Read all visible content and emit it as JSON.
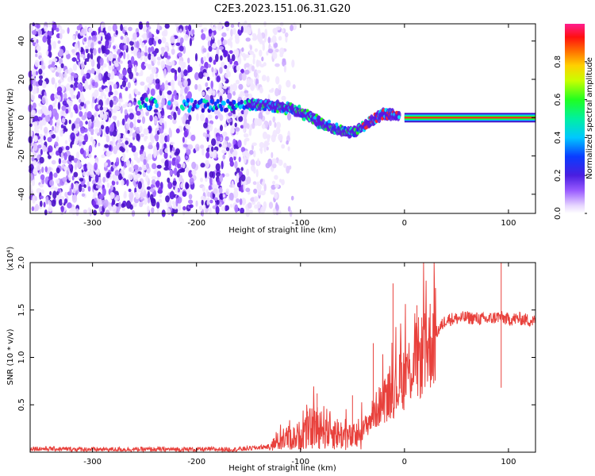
{
  "figure": {
    "title": "C2E3.2023.151.06.31.G20"
  },
  "chart_data": [
    {
      "type": "heatmap",
      "xlabel": "Height of straight line (km)",
      "ylabel": "Frequency (Hz)",
      "xlim": [
        -360,
        126
      ],
      "ylim": [
        -50,
        49
      ],
      "xticks": [
        -300,
        -200,
        -100,
        0,
        100
      ],
      "yticks": [
        -40,
        -20,
        0,
        20,
        40
      ],
      "grid": false,
      "colorbar": {
        "label": "Normalized spectral amplitude",
        "range": [
          0.0,
          1.0
        ],
        "ticks": [
          0.0,
          0.2,
          0.4,
          0.6,
          0.8
        ],
        "colormap": "rainbow (white-violet-blue-cyan-green-yellow-orange-red-magenta)"
      },
      "signal_ridge": {
        "description": "Doppler signal ridge frequency vs height",
        "x": [
          -250,
          -200,
          -150,
          -120,
          -100,
          -80,
          -60,
          -50,
          -40,
          -30,
          -20,
          0,
          50,
          126
        ],
        "y": [
          8,
          6,
          7,
          6,
          3,
          -3,
          -7,
          -8,
          -5,
          -1,
          2,
          1,
          0,
          0
        ]
      }
    },
    {
      "type": "line",
      "xlabel": "Height of straight line (km)",
      "ylabel": "SNR (10 * v/v)",
      "ylabel_multiplier": "(x10⁴)",
      "xlim": [
        -360,
        126
      ],
      "ylim": [
        0,
        20000
      ],
      "xticks": [
        -300,
        -200,
        -100,
        0,
        100
      ],
      "yticks": [
        5000,
        10000,
        15000,
        20000
      ],
      "ytick_labels": [
        "0.5",
        "1.0",
        "1.5",
        "2.0"
      ],
      "grid": false,
      "series": [
        {
          "color": "#e8413c",
          "x": [
            -360,
            -340,
            -300,
            -250,
            -200,
            -160,
            -130,
            -115,
            -105,
            -90,
            -80,
            -70,
            -60,
            -50,
            -40,
            -30,
            -20,
            -10,
            0,
            10,
            20,
            30,
            40,
            60,
            80,
            90,
            100,
            110,
            126
          ],
          "y": [
            400,
            350,
            300,
            300,
            300,
            300,
            600,
            1500,
            1500,
            2500,
            2800,
            2200,
            1800,
            1500,
            2300,
            4000,
            5500,
            6500,
            8000,
            9500,
            10500,
            12500,
            14000,
            14200,
            14000,
            14300,
            14000,
            14100,
            13800
          ]
        }
      ],
      "spikes": [
        {
          "x": -84,
          "y": 6200
        },
        {
          "x": -50,
          "y": 6000
        },
        {
          "x": -30,
          "y": 11500
        },
        {
          "x": -11,
          "y": 17800
        },
        {
          "x": 12,
          "y": 15500
        },
        {
          "x": 93,
          "y": 20000
        },
        {
          "x": 93,
          "y": 6800
        }
      ]
    }
  ]
}
